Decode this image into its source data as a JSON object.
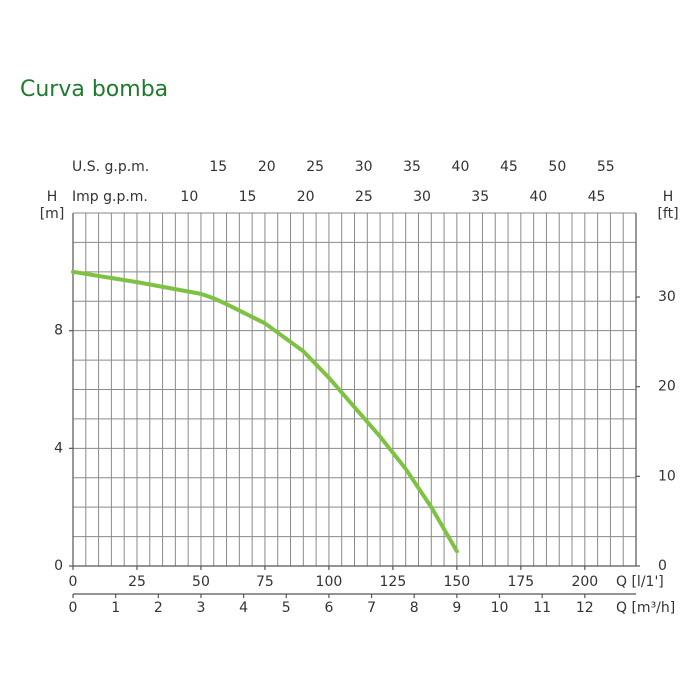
{
  "chart_data": {
    "type": "line",
    "title": "Curva bomba",
    "title_color": "#1f7a2e",
    "x": [
      0,
      25,
      50,
      55,
      60,
      75,
      90,
      100,
      110,
      120,
      130,
      140,
      150
    ],
    "series": [
      {
        "color": "#7dc242",
        "values": [
          10,
          9.65,
          9.25,
          9.1,
          8.9,
          8.25,
          7.3,
          6.4,
          5.4,
          4.4,
          3.3,
          2.0,
          0.5
        ]
      }
    ],
    "xlabel": "Q [l/1']",
    "xlim": [
      0,
      220
    ],
    "xticks": [
      0,
      25,
      50,
      75,
      100,
      125,
      150,
      175,
      200
    ],
    "x_gridlines": [
      0,
      5,
      10,
      15,
      20,
      25,
      30,
      35,
      40,
      45,
      50,
      55,
      60,
      65,
      70,
      75,
      80,
      85,
      90,
      95,
      100,
      105,
      110,
      115,
      120,
      125,
      130,
      135,
      140,
      145,
      150,
      155,
      160,
      165,
      170,
      175,
      180,
      185,
      190,
      195,
      200,
      205,
      210,
      215,
      220
    ],
    "ylabel": "H",
    "yunit": "[m]",
    "ylim": [
      0,
      12
    ],
    "yticks": [
      0,
      4,
      8
    ],
    "y_gridlines": [
      0,
      1,
      2,
      3,
      4,
      5,
      6,
      7,
      8,
      9,
      10,
      11,
      12
    ],
    "y2label": "H",
    "y2unit": "[ft]",
    "y2lim": [
      0,
      39.37
    ],
    "y2ticks": [
      0,
      10,
      20,
      30
    ],
    "x2label": "Q [m³/h]",
    "x2lim": [
      0,
      13.2
    ],
    "x2ticks": [
      0,
      1,
      2,
      3,
      4,
      5,
      6,
      7,
      8,
      9,
      10,
      11,
      12
    ],
    "x3label": "U.S. g.p.m.",
    "x3lim": [
      0,
      58.12
    ],
    "x3ticks": [
      15,
      20,
      25,
      30,
      35,
      40,
      45,
      50,
      55
    ],
    "x4label": "Imp g.p.m.",
    "x4lim": [
      0,
      48.39
    ],
    "x4ticks": [
      10,
      15,
      20,
      25,
      30,
      35,
      40,
      45
    ],
    "grid": true
  }
}
